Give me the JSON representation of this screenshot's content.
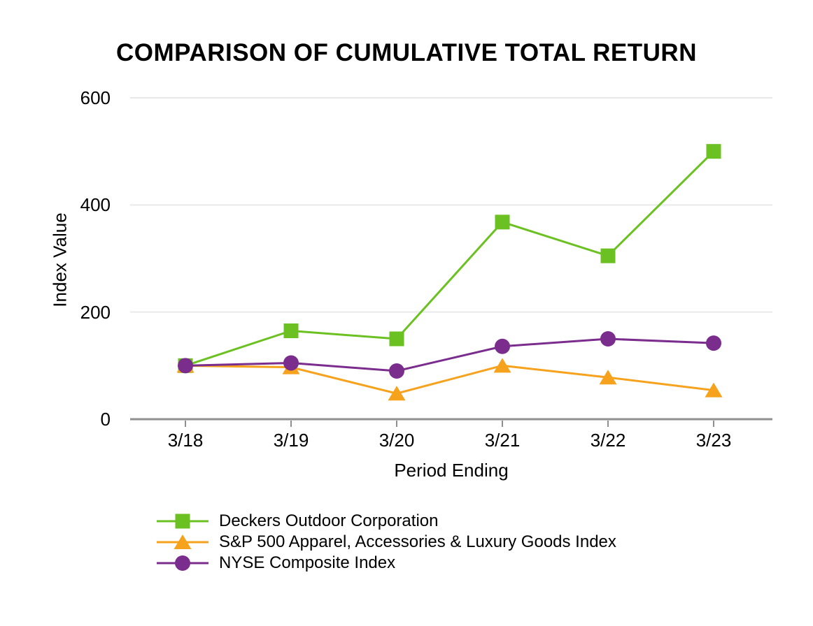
{
  "chart_data": {
    "type": "line",
    "title": "COMPARISON OF CUMULATIVE TOTAL RETURN",
    "xlabel": "Period Ending",
    "ylabel": "Index Value",
    "categories": [
      "3/18",
      "3/19",
      "3/20",
      "3/21",
      "3/22",
      "3/23"
    ],
    "yticks": [
      0,
      200,
      400,
      600
    ],
    "ylim": [
      0,
      600
    ],
    "grid": "horizontal-gridlines",
    "legend_position": "bottom-left",
    "axis_color": "#8f8f8f",
    "gridline_color": "#e9e9e9",
    "series": [
      {
        "name": "Deckers Outdoor Corporation",
        "color": "#6bc121",
        "marker": "square",
        "values": [
          100,
          165,
          150,
          368,
          305,
          500
        ]
      },
      {
        "name": "S&P 500 Apparel, Accessories & Luxury Goods Index",
        "color": "#f6a21d",
        "marker": "triangle",
        "values": [
          100,
          97,
          48,
          100,
          78,
          54
        ]
      },
      {
        "name": "NYSE Composite Index",
        "color": "#7b2d8e",
        "marker": "circle",
        "values": [
          100,
          105,
          90,
          136,
          150,
          142
        ]
      }
    ]
  }
}
